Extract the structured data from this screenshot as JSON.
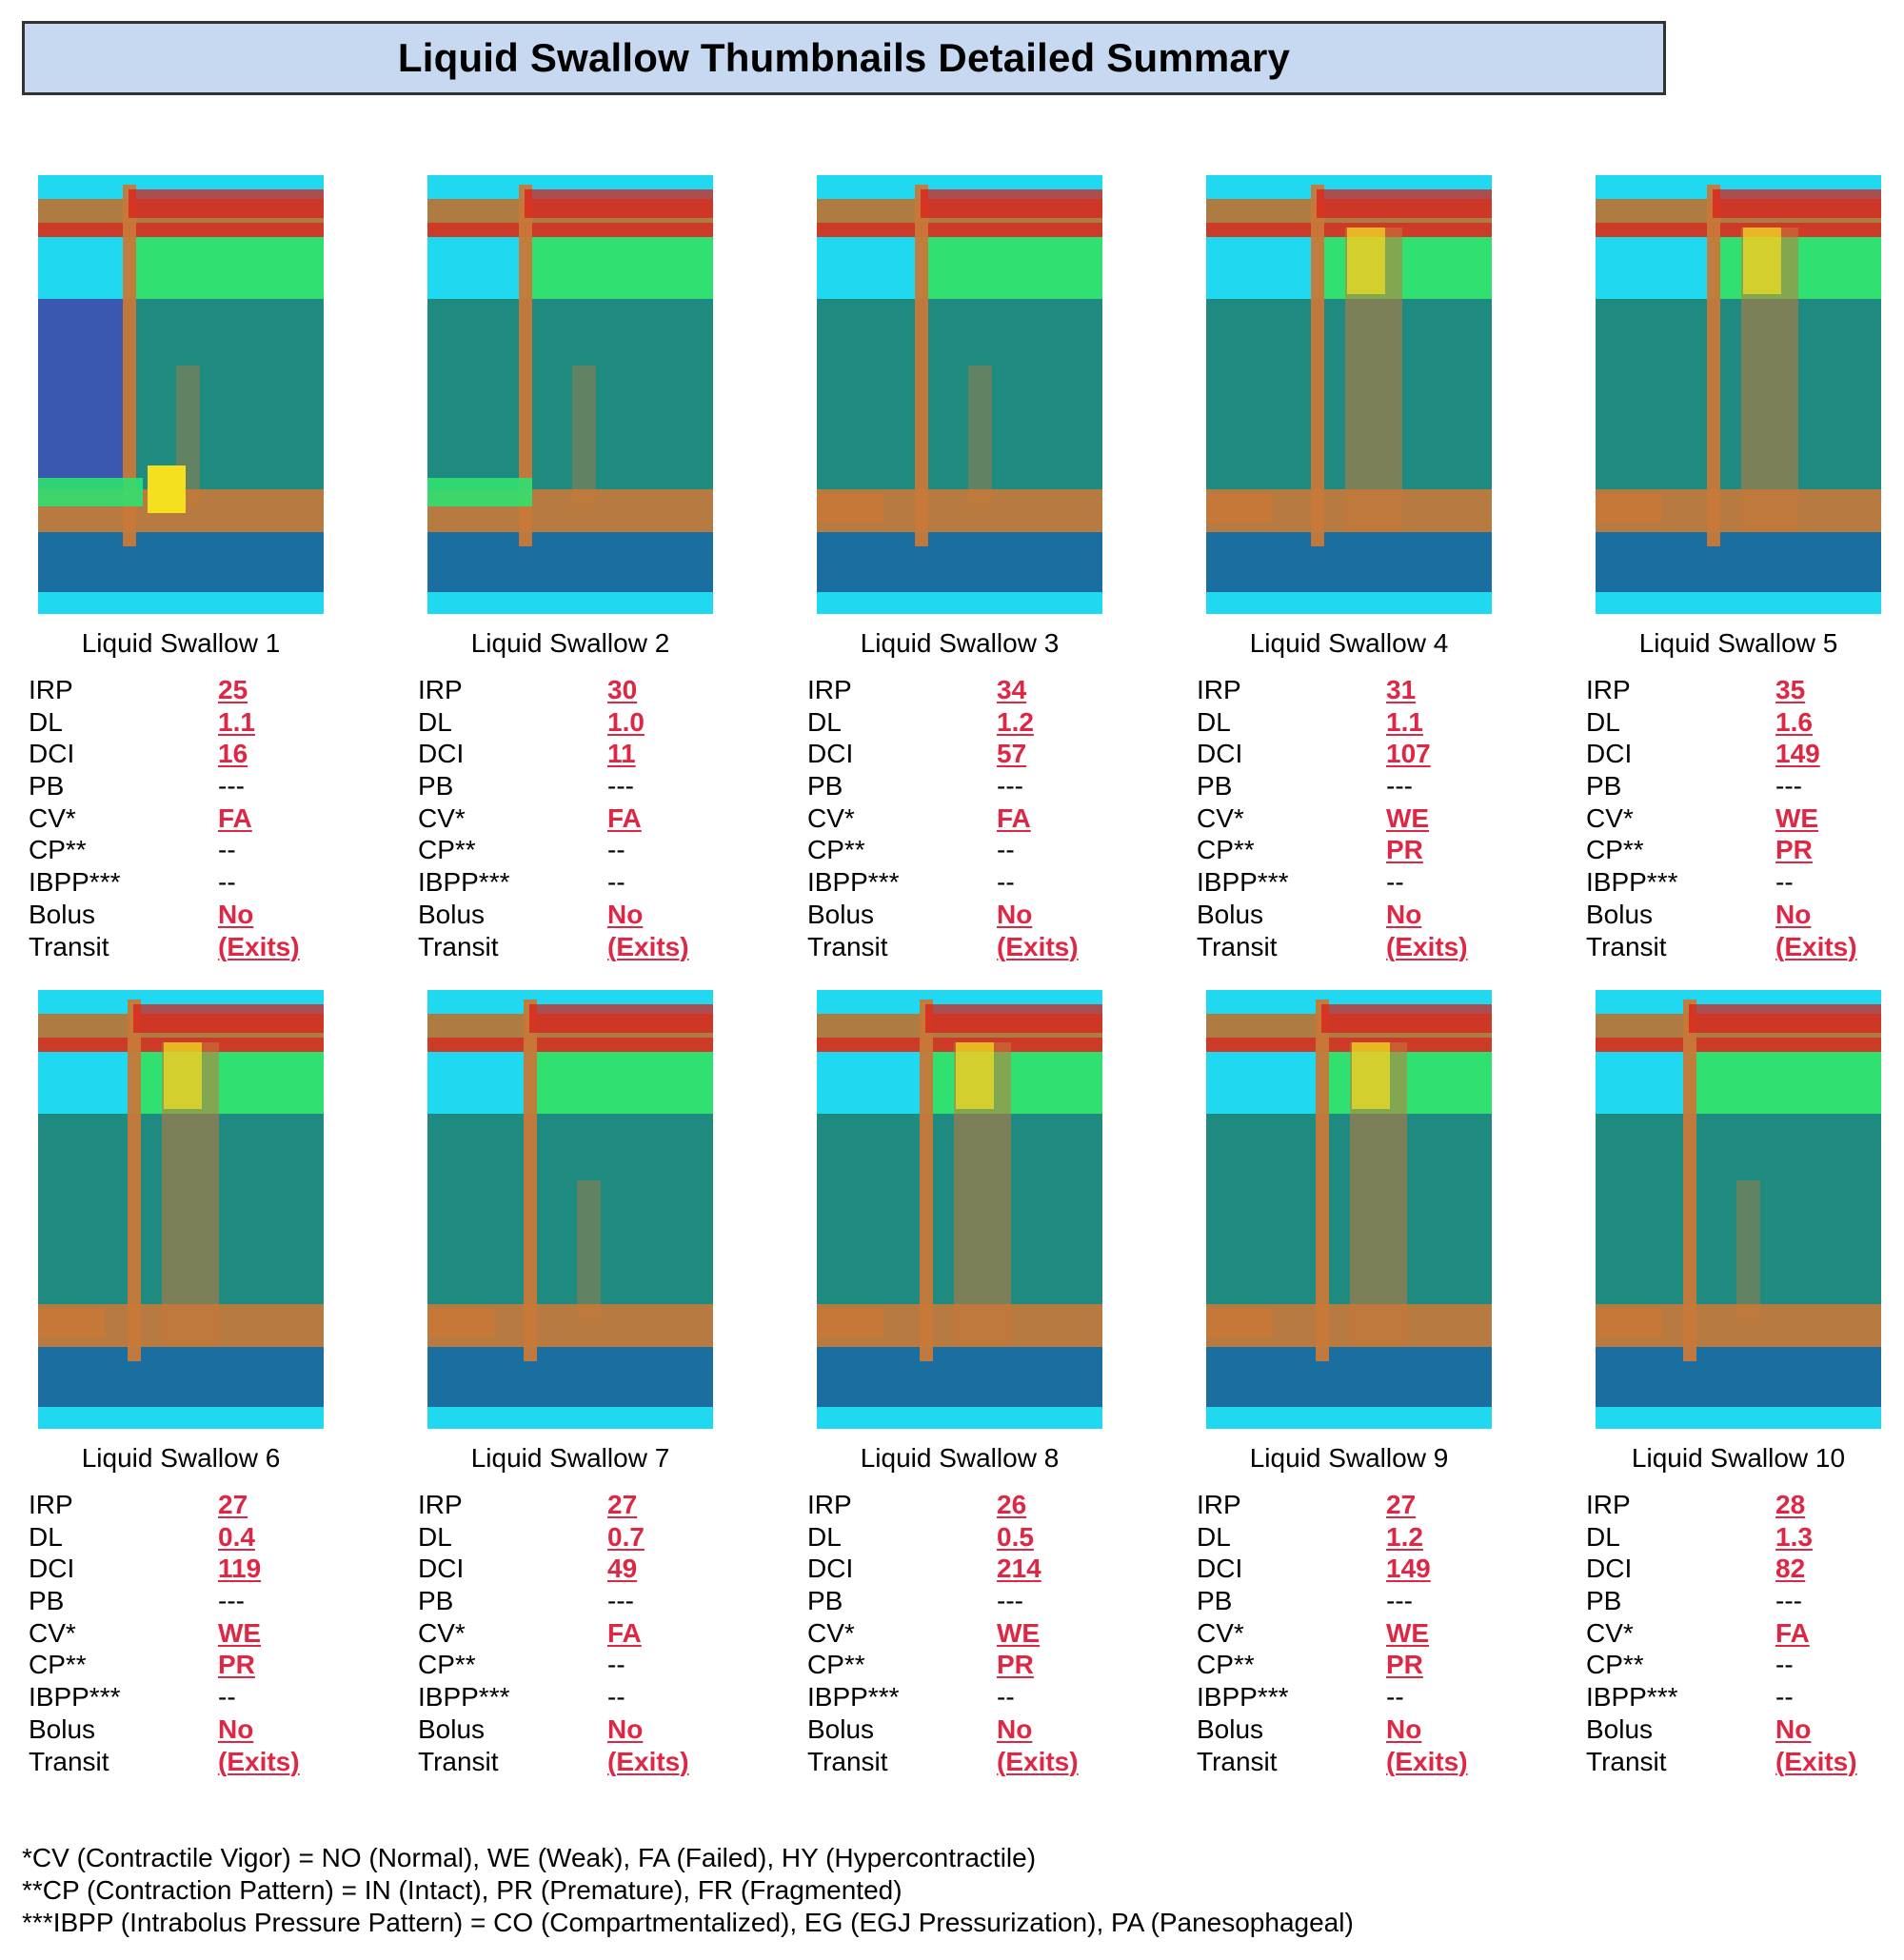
{
  "title": "Liquid Swallow Thumbnails Detailed Summary",
  "labels": {
    "irp": "IRP",
    "dl": "DL",
    "dci": "DCI",
    "pb": "PB",
    "cv": "CV*",
    "cp": "CP**",
    "ibpp": "IBPP***",
    "bolus": "Bolus",
    "transit": "Transit"
  },
  "colors": {
    "highlight": "#dd2744",
    "title_bg": "#c6d9f1",
    "map_deep": "#1a6ea0",
    "map_teal": "#1e8a80",
    "map_cyan": "#20d8f0",
    "map_green": "#30e070",
    "map_yellow": "#f5e020",
    "map_orange": "#c87838",
    "map_red": "#d8201c"
  },
  "swallows": [
    {
      "caption": "Liquid Swallow 1",
      "irp": "25",
      "dl": "1.1",
      "dci": "16",
      "pb": "---",
      "cv": "FA",
      "cp": "--",
      "ibpp": "--",
      "bolus": "No",
      "transit": "(Exits)"
    },
    {
      "caption": "Liquid Swallow 2",
      "irp": "30",
      "dl": "1.0",
      "dci": "11",
      "pb": "---",
      "cv": "FA",
      "cp": "--",
      "ibpp": "--",
      "bolus": "No",
      "transit": "(Exits)"
    },
    {
      "caption": "Liquid Swallow 3",
      "irp": "34",
      "dl": "1.2",
      "dci": "57",
      "pb": "---",
      "cv": "FA",
      "cp": "--",
      "ibpp": "--",
      "bolus": "No",
      "transit": "(Exits)"
    },
    {
      "caption": "Liquid Swallow 4",
      "irp": "31",
      "dl": "1.1",
      "dci": "107",
      "pb": "---",
      "cv": "WE",
      "cp": "PR",
      "ibpp": "--",
      "bolus": "No",
      "transit": "(Exits)"
    },
    {
      "caption": "Liquid Swallow 5",
      "irp": "35",
      "dl": "1.6",
      "dci": "149",
      "pb": "---",
      "cv": "WE",
      "cp": "PR",
      "ibpp": "--",
      "bolus": "No",
      "transit": "(Exits)"
    },
    {
      "caption": "Liquid Swallow 6",
      "irp": "27",
      "dl": "0.4",
      "dci": "119",
      "pb": "---",
      "cv": "WE",
      "cp": "PR",
      "ibpp": "--",
      "bolus": "No",
      "transit": "(Exits)"
    },
    {
      "caption": "Liquid Swallow 7",
      "irp": "27",
      "dl": "0.7",
      "dci": "49",
      "pb": "---",
      "cv": "FA",
      "cp": "--",
      "ibpp": "--",
      "bolus": "No",
      "transit": "(Exits)"
    },
    {
      "caption": "Liquid Swallow 8",
      "irp": "26",
      "dl": "0.5",
      "dci": "214",
      "pb": "---",
      "cv": "WE",
      "cp": "PR",
      "ibpp": "--",
      "bolus": "No",
      "transit": "(Exits)"
    },
    {
      "caption": "Liquid Swallow 9",
      "irp": "27",
      "dl": "1.2",
      "dci": "149",
      "pb": "---",
      "cv": "WE",
      "cp": "PR",
      "ibpp": "--",
      "bolus": "No",
      "transit": "(Exits)"
    },
    {
      "caption": "Liquid Swallow 10",
      "irp": "28",
      "dl": "1.3",
      "dci": "82",
      "pb": "---",
      "cv": "FA",
      "cp": "--",
      "ibpp": "--",
      "bolus": "No",
      "transit": "(Exits)"
    }
  ],
  "footnotes": [
    "*CV (Contractile Vigor) = NO (Normal), WE (Weak), FA (Failed), HY (Hypercontractile)",
    "**CP (Contraction Pattern) = IN (Intact), PR (Premature), FR (Fragmented)",
    "***IBPP (Intrabolus Pressure Pattern) = CO (Compartmentalized), EG (EGJ Pressurization), PA (Panesophageal)"
  ]
}
